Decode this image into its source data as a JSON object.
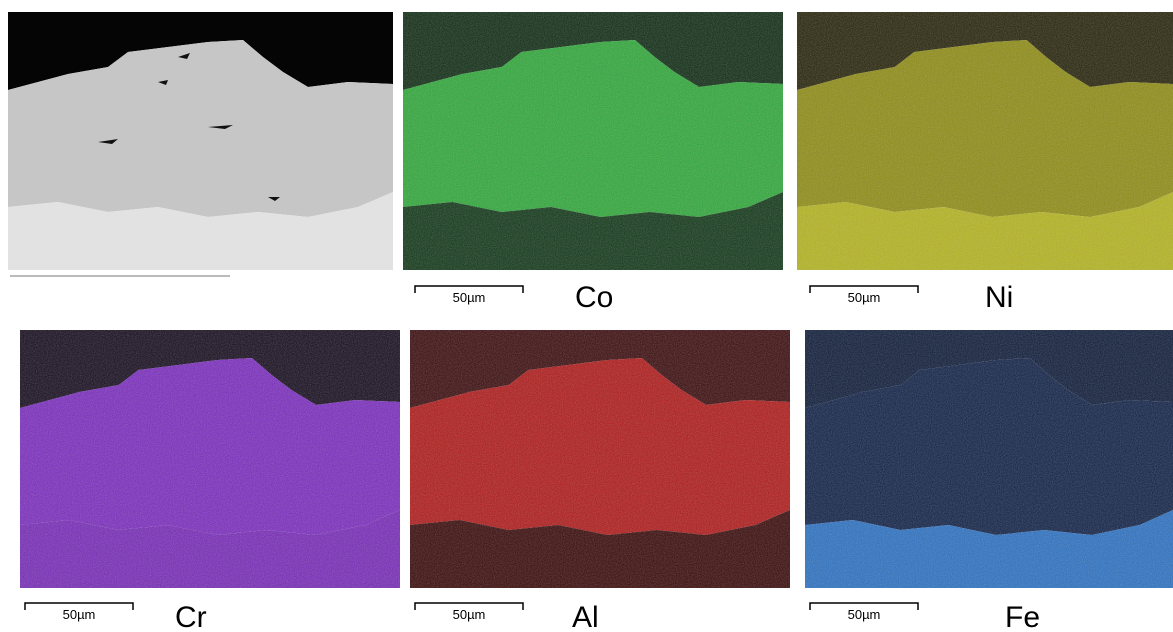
{
  "maps": [
    {
      "element": "Co",
      "scale_bar": "50µm"
    },
    {
      "element": "Ni",
      "scale_bar": "50µm"
    },
    {
      "element": "Cr",
      "scale_bar": "50µm"
    },
    {
      "element": "Al",
      "scale_bar": "50µm"
    },
    {
      "element": "Fe",
      "scale_bar": "50µm"
    }
  ]
}
